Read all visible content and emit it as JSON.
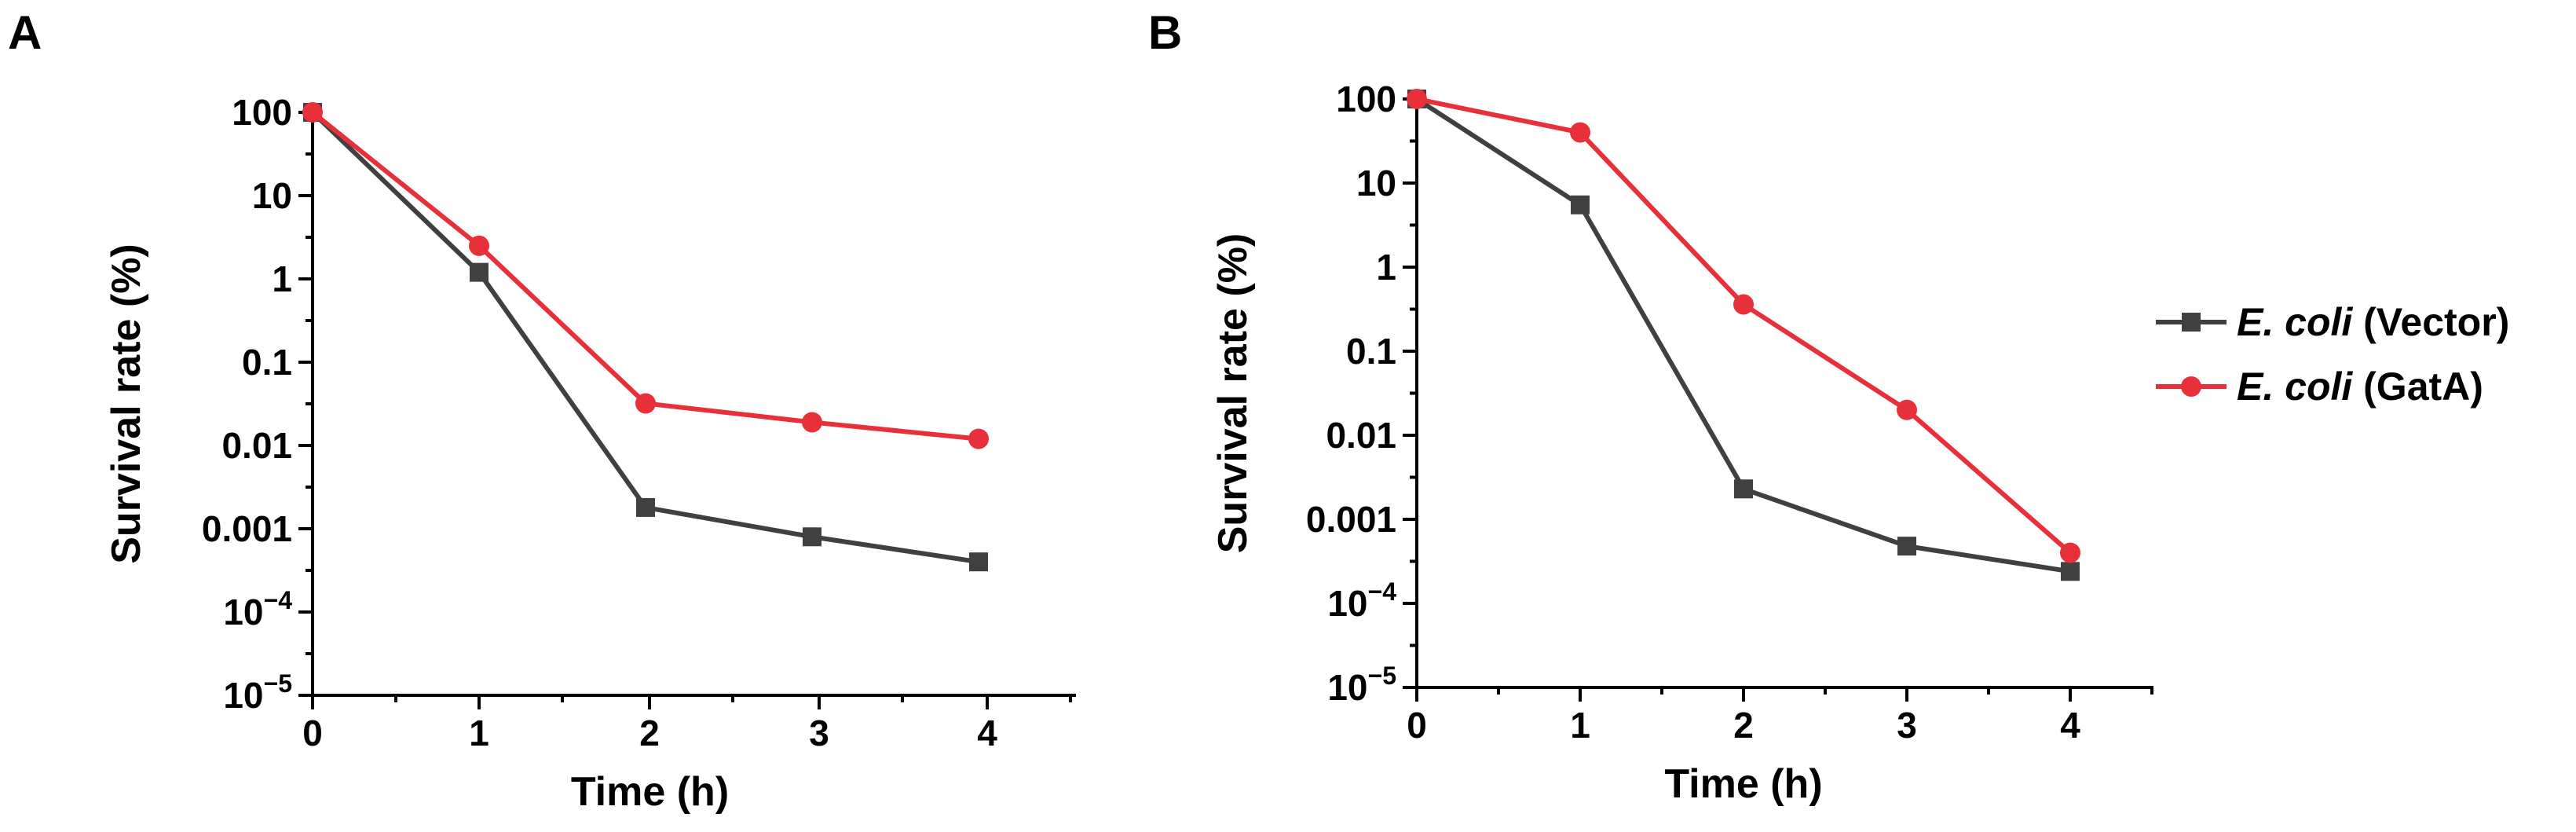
{
  "chart_data": [
    {
      "panel": "A",
      "type": "line",
      "xlabel": "Time (h)",
      "ylabel": "Survival rate (%)",
      "yscale": "log",
      "x": [
        0,
        1,
        2,
        3,
        4
      ],
      "xlim": [
        0,
        4.5
      ],
      "ylim": [
        1e-05,
        100
      ],
      "yticks": [
        {
          "value": 100,
          "label": "100"
        },
        {
          "value": 10,
          "label": "10"
        },
        {
          "value": 1,
          "label": "1"
        },
        {
          "value": 0.1,
          "label": "0.1"
        },
        {
          "value": 0.01,
          "label": "0.01"
        },
        {
          "value": 0.001,
          "label": "0.001"
        },
        {
          "value": 0.0001,
          "base": "10",
          "exp": "−4"
        },
        {
          "value": 1e-05,
          "base": "10",
          "exp": "−5"
        }
      ],
      "xticks": [
        "0",
        "1",
        "2",
        "3",
        "4"
      ],
      "series": [
        {
          "name": "E. coli (Vector)",
          "marker": "square",
          "color": "#404040",
          "values": [
            100,
            1.2,
            0.0018,
            0.0008,
            0.0004
          ]
        },
        {
          "name": "E. coli (GatA)",
          "marker": "circle",
          "color": "#e8303a",
          "values": [
            100,
            2.5,
            0.032,
            0.019,
            0.012
          ]
        }
      ]
    },
    {
      "panel": "B",
      "type": "line",
      "xlabel": "Time (h)",
      "ylabel": "Survival rate (%)",
      "yscale": "log",
      "x": [
        0,
        1,
        2,
        3,
        4
      ],
      "xlim": [
        0,
        4.5
      ],
      "ylim": [
        1e-05,
        100
      ],
      "yticks": [
        {
          "value": 100,
          "label": "100"
        },
        {
          "value": 10,
          "label": "10"
        },
        {
          "value": 1,
          "label": "1"
        },
        {
          "value": 0.1,
          "label": "0.1"
        },
        {
          "value": 0.01,
          "label": "0.01"
        },
        {
          "value": 0.001,
          "label": "0.001"
        },
        {
          "value": 0.0001,
          "base": "10",
          "exp": "−4"
        },
        {
          "value": 1e-05,
          "base": "10",
          "exp": "−5"
        }
      ],
      "xticks": [
        "0",
        "1",
        "2",
        "3",
        "4"
      ],
      "series": [
        {
          "name": "E. coli (Vector)",
          "marker": "square",
          "color": "#404040",
          "values": [
            100,
            5.5,
            0.0023,
            0.00048,
            0.00024
          ]
        },
        {
          "name": "E. coli (GatA)",
          "marker": "circle",
          "color": "#e8303a",
          "values": [
            100,
            40,
            0.36,
            0.02,
            0.0004
          ]
        }
      ]
    }
  ],
  "panels": {
    "a_label": "A",
    "b_label": "B"
  },
  "legend": {
    "position": "right",
    "items": [
      {
        "italic": "E. coli",
        "rest": " (Vector)",
        "color": "#404040",
        "marker": "square"
      },
      {
        "italic": "E. coli",
        "rest": " (GatA)",
        "color": "#e8303a",
        "marker": "circle"
      }
    ]
  }
}
